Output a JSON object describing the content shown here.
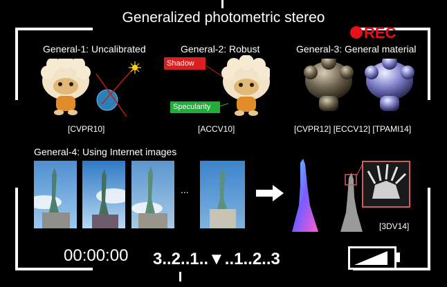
{
  "title": "Generalized photometric stereo",
  "rec_label": "REC",
  "timecode": "00:00:00",
  "exposure_scale": "3..2..1..▼..1..2..3",
  "ellipsis": "...",
  "sections": {
    "g1": {
      "heading": "General-1: Uncalibrated",
      "citation": "[CVPR10]"
    },
    "g2": {
      "heading": "General-2: Robust",
      "citation": "[ACCV10]",
      "shadow_label": "Shadow",
      "specularity_label": "Specularity"
    },
    "g3": {
      "heading": "General-3: General material",
      "citation": "[CVPR12] [ECCV12] [TPAMI14]"
    },
    "g4": {
      "heading": "General-4: Using Internet images",
      "citation": "[3DV14]"
    }
  },
  "colors": {
    "rec_red": "#e8101a",
    "shadow_red": "#d91f1f",
    "spec_green": "#1fae3a"
  },
  "icons": [
    "rec-dot-icon",
    "battery-icon",
    "arrow-right-icon",
    "light-source-icon",
    "sphere-icon"
  ]
}
